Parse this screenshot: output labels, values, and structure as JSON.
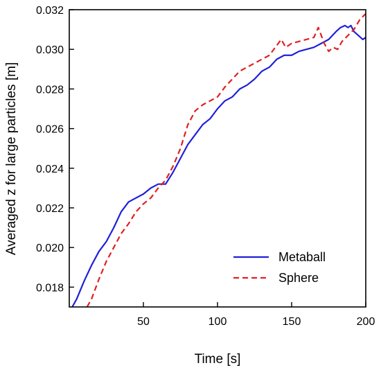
{
  "chart_data": {
    "type": "line",
    "title": "",
    "xlabel": "Time [s]",
    "ylabel": "Averaged z for large particles [m]",
    "xlim": [
      0,
      200
    ],
    "ylim": [
      0.017,
      0.032
    ],
    "x_ticks": [
      50,
      100,
      150,
      200
    ],
    "x_tick_labels": [
      "50",
      "100",
      "150",
      "200"
    ],
    "y_ticks": [
      0.018,
      0.02,
      0.022,
      0.024,
      0.026,
      0.028,
      0.03,
      0.032
    ],
    "y_tick_labels": [
      "0.018",
      "0.020",
      "0.022",
      "0.024",
      "0.026",
      "0.028",
      "0.030",
      "0.032"
    ],
    "grid": false,
    "legend_position": "bottom-right",
    "series": [
      {
        "name": "Metaball",
        "color": "#1f1fd8",
        "dash": "solid",
        "x": [
          2,
          5,
          10,
          15,
          20,
          25,
          30,
          35,
          40,
          45,
          50,
          55,
          60,
          65,
          70,
          75,
          80,
          85,
          90,
          95,
          100,
          105,
          110,
          115,
          120,
          125,
          130,
          135,
          140,
          145,
          150,
          155,
          160,
          165,
          170,
          175,
          180,
          183,
          186,
          188,
          190,
          192,
          195,
          198,
          200
        ],
        "y": [
          0.017,
          0.0174,
          0.0183,
          0.0191,
          0.0198,
          0.0203,
          0.021,
          0.0218,
          0.0223,
          0.0225,
          0.0227,
          0.023,
          0.0232,
          0.0232,
          0.0238,
          0.0245,
          0.0252,
          0.0257,
          0.0262,
          0.0265,
          0.027,
          0.0274,
          0.0276,
          0.028,
          0.0282,
          0.0285,
          0.0289,
          0.0291,
          0.0295,
          0.0297,
          0.0297,
          0.0299,
          0.03,
          0.0301,
          0.0303,
          0.0305,
          0.0309,
          0.0311,
          0.0312,
          0.0311,
          0.0312,
          0.0309,
          0.0307,
          0.0305,
          0.0306
        ]
      },
      {
        "name": "Sphere",
        "color": "#e02020",
        "dash": "dashed",
        "x": [
          12,
          15,
          20,
          25,
          30,
          35,
          40,
          45,
          50,
          55,
          60,
          65,
          70,
          75,
          80,
          85,
          90,
          95,
          100,
          105,
          110,
          115,
          120,
          125,
          130,
          135,
          140,
          143,
          146,
          150,
          155,
          160,
          165,
          168,
          172,
          175,
          178,
          181,
          184,
          188,
          192,
          196,
          200
        ],
        "y": [
          0.017,
          0.0174,
          0.0184,
          0.0193,
          0.02,
          0.0207,
          0.0212,
          0.0218,
          0.0222,
          0.0225,
          0.023,
          0.0234,
          0.0241,
          0.025,
          0.0262,
          0.0269,
          0.0272,
          0.0274,
          0.0276,
          0.0281,
          0.0285,
          0.0289,
          0.0291,
          0.0293,
          0.0295,
          0.0297,
          0.0302,
          0.0305,
          0.0301,
          0.0303,
          0.0304,
          0.0305,
          0.0306,
          0.0311,
          0.0303,
          0.0299,
          0.0301,
          0.03,
          0.0304,
          0.0307,
          0.031,
          0.0315,
          0.0318
        ]
      }
    ]
  }
}
